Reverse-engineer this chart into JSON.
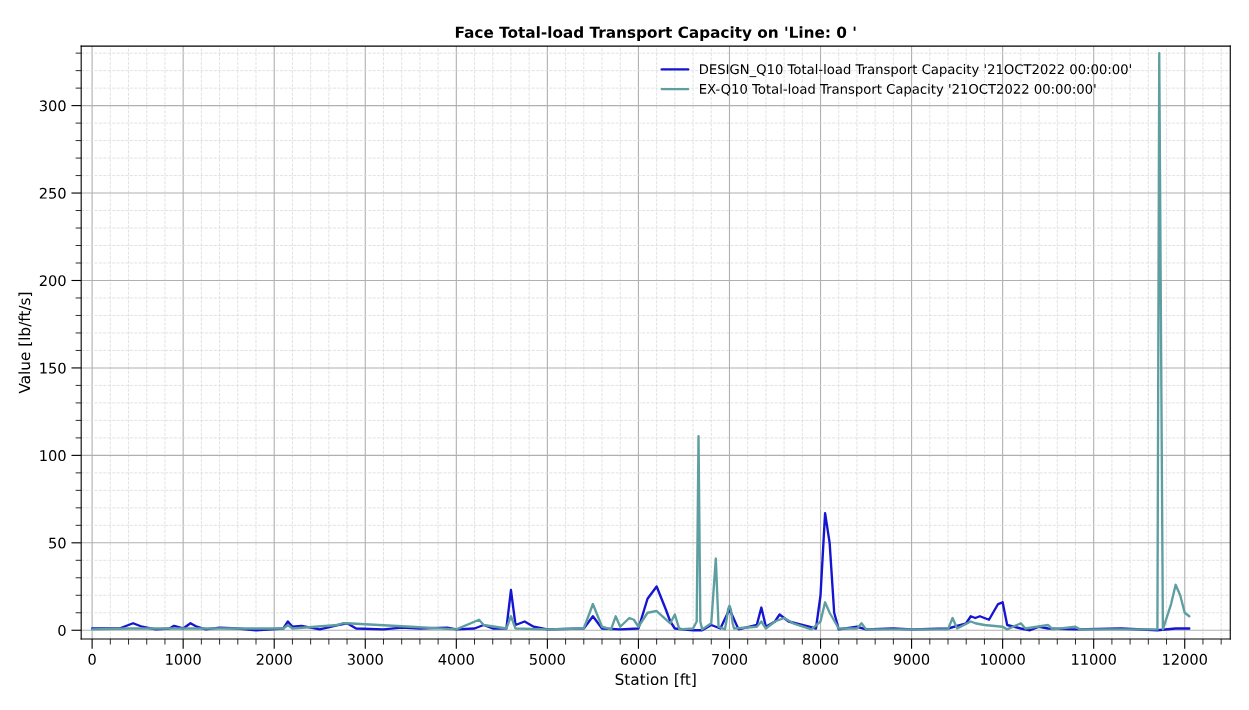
{
  "chart_data": {
    "type": "line",
    "title": "Face Total-load Transport Capacity on 'Line: 0 '",
    "xlabel": "Station [ft]",
    "ylabel": "Value [lb/ft/s]",
    "xlim": [
      -120,
      12500
    ],
    "xticks": [
      0,
      1000,
      2000,
      3000,
      4000,
      5000,
      6000,
      7000,
      8000,
      9000,
      10000,
      11000,
      12000
    ],
    "ylim": [
      -5,
      334
    ],
    "yticks": [
      0,
      50,
      100,
      150,
      200,
      250,
      300
    ],
    "grid": true,
    "legend": "top right",
    "marker": "none",
    "line_style": "solid",
    "series": [
      {
        "name": "DESIGN_Q10 Total-load Transport Capacity '21OCT2022 00:00:00'",
        "color": "#1414d2",
        "x": [
          0,
          300,
          400,
          450,
          550,
          700,
          850,
          900,
          1000,
          1080,
          1150,
          1250,
          1400,
          1600,
          1800,
          2100,
          2150,
          2200,
          2300,
          2500,
          2700,
          2800,
          2900,
          3200,
          3400,
          3600,
          3900,
          4000,
          4200,
          4300,
          4400,
          4550,
          4600,
          4650,
          4750,
          4850,
          5000,
          5400,
          5500,
          5600,
          5800,
          6000,
          6100,
          6200,
          6300,
          6350,
          6400,
          6600,
          6700,
          6800,
          6850,
          6900,
          7000,
          7100,
          7300,
          7350,
          7400,
          7500,
          7550,
          7650,
          7800,
          7950,
          8000,
          8050,
          8100,
          8150,
          8200,
          8400,
          8500,
          8800,
          9000,
          9400,
          9600,
          9650,
          9700,
          9750,
          9850,
          9950,
          10000,
          10050,
          10200,
          10300,
          10400,
          10500,
          10800,
          11300,
          11700,
          11900,
          12050
        ],
        "values": [
          1,
          1,
          3,
          4,
          2,
          0.5,
          1,
          2.5,
          1,
          4,
          2,
          0.5,
          1.5,
          1,
          0,
          1,
          5,
          2,
          2.5,
          0.5,
          3,
          4,
          1,
          0.5,
          1.5,
          1,
          1.5,
          0.5,
          1,
          3,
          1,
          1,
          23,
          3,
          5,
          2,
          0.5,
          1,
          8,
          1,
          0.5,
          1,
          18,
          25,
          12,
          5,
          1,
          0,
          0,
          3,
          2,
          1,
          12,
          0.5,
          3,
          13,
          2,
          5,
          9,
          5,
          3,
          1,
          20,
          67,
          50,
          10,
          0.5,
          2,
          0.5,
          1,
          0.5,
          1,
          4,
          8,
          7,
          8,
          6,
          15,
          16,
          3,
          1,
          0,
          2,
          1,
          0.5,
          1,
          0,
          1,
          1
        ]
      },
      {
        "name": "EX-Q10 Total-load Transport Capacity '21OCT2022 00:00:00'",
        "color": "#5f9ea0",
        "x": [
          0,
          400,
          900,
          1100,
          1400,
          2100,
          2150,
          2200,
          2700,
          2750,
          2800,
          3500,
          4000,
          4250,
          4300,
          4550,
          4600,
          4650,
          5000,
          5400,
          5500,
          5600,
          5700,
          5750,
          5800,
          5900,
          5950,
          6000,
          6100,
          6200,
          6350,
          6400,
          6450,
          6600,
          6640,
          6660,
          6680,
          6700,
          6800,
          6850,
          6880,
          6950,
          6965,
          6985,
          7000,
          7015,
          7035,
          7050,
          7300,
          7350,
          7400,
          7500,
          7600,
          7700,
          7900,
          8000,
          8050,
          8100,
          8200,
          8400,
          8450,
          8500,
          9400,
          9450,
          9500,
          9650,
          9700,
          9800,
          10000,
          10050,
          10200,
          10250,
          10500,
          10550,
          10800,
          10850,
          11700,
          11720,
          11760,
          11850,
          11900,
          11950,
          12000,
          12050
        ],
        "values": [
          0.5,
          1,
          1,
          1,
          1,
          1,
          3,
          1,
          3,
          4,
          4,
          2,
          0.5,
          6,
          3,
          1,
          8,
          1,
          0.5,
          1,
          15,
          2,
          0.5,
          8,
          2,
          7,
          6,
          2,
          10,
          11,
          4,
          9,
          0.5,
          1,
          5,
          111,
          5,
          0.5,
          4,
          41,
          2,
          0.5,
          5,
          12,
          14,
          12,
          4,
          1,
          2,
          5,
          1,
          5,
          7,
          4,
          0.5,
          5,
          16,
          10,
          1,
          1,
          4,
          0.5,
          0.5,
          7,
          1,
          5,
          4,
          3,
          2,
          0.5,
          4,
          1,
          3,
          0.5,
          2,
          0.5,
          0.5,
          330,
          0.5,
          15,
          26,
          20,
          10,
          8
        ]
      }
    ]
  }
}
